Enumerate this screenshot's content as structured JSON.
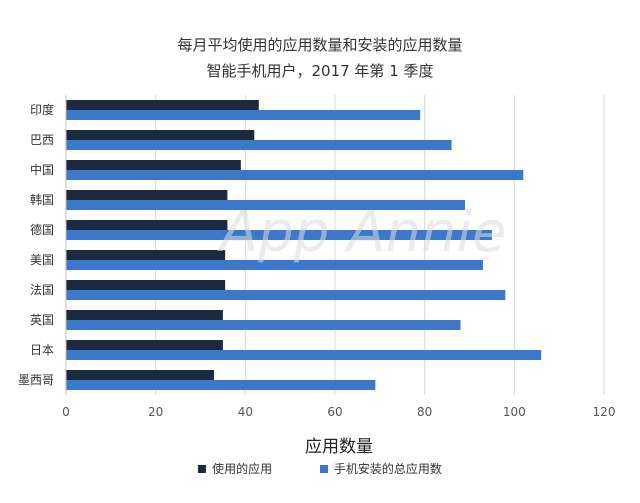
{
  "chart_data": {
    "type": "bar",
    "orientation": "horizontal",
    "title": "每月平均使用的应用数量和安装的应用数量",
    "subtitle": "智能手机用户，2017 年第 1 季度",
    "xlabel": "应用数量",
    "ylabel": "",
    "xlim": [
      0,
      120
    ],
    "xticks": [
      0,
      20,
      40,
      60,
      80,
      100,
      120
    ],
    "grid": true,
    "legend_position": "bottom",
    "categories": [
      "印度",
      "巴西",
      "中国",
      "韩国",
      "德国",
      "美国",
      "法国",
      "英国",
      "日本",
      "墨西哥"
    ],
    "series": [
      {
        "name": "使用的应用",
        "color": "#1b2a3f",
        "values": [
          43,
          42,
          39,
          36,
          36,
          35.5,
          35.5,
          35,
          35,
          33
        ]
      },
      {
        "name": "手机安装的总应用数",
        "color": "#3b78c9",
        "values": [
          79,
          86,
          102,
          89,
          95,
          93,
          98,
          88,
          106,
          69
        ]
      }
    ],
    "watermark": "App Annie"
  }
}
